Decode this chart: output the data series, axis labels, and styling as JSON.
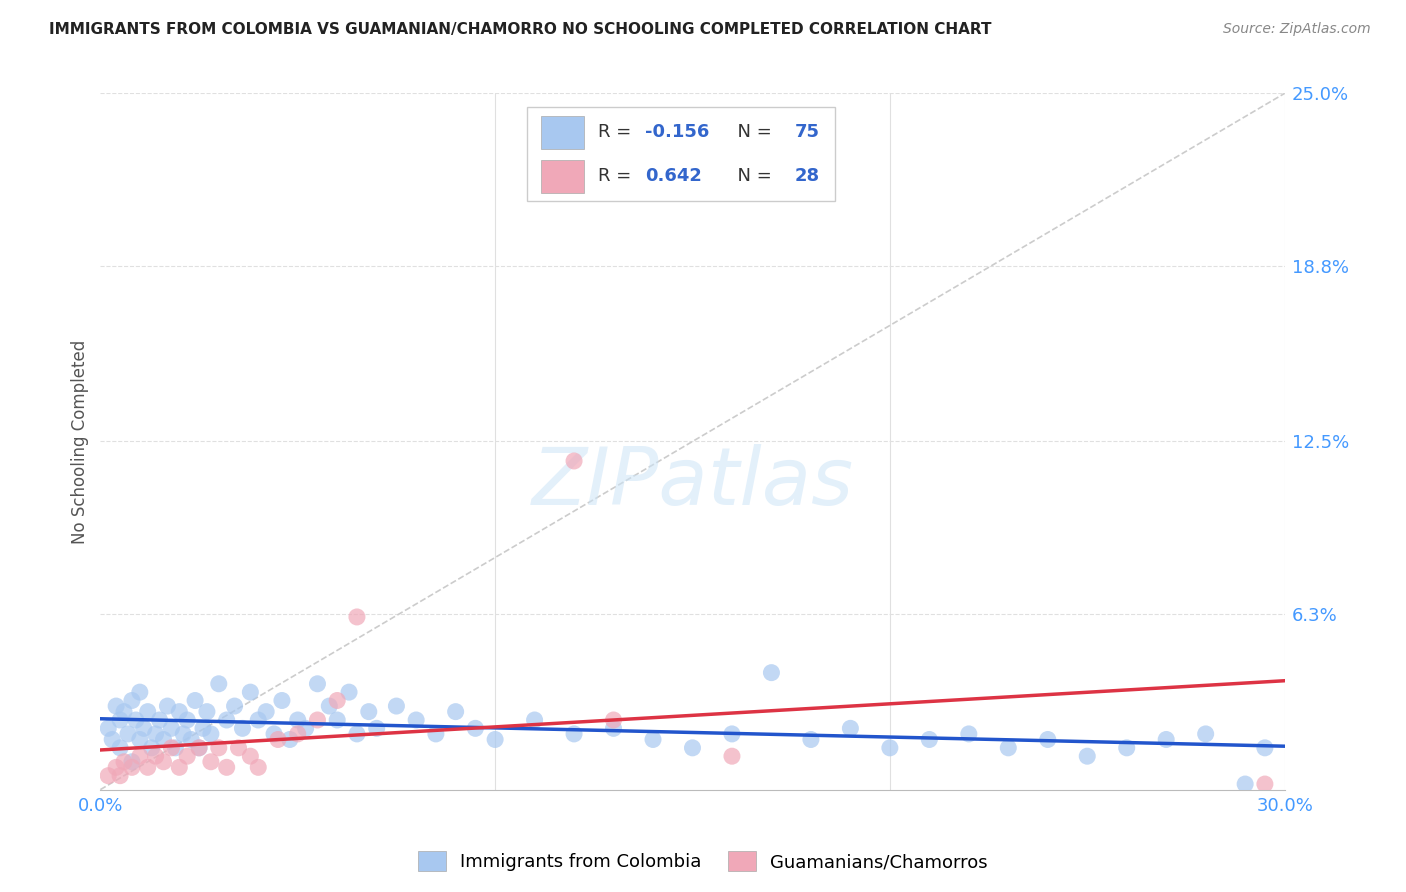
{
  "title": "IMMIGRANTS FROM COLOMBIA VS GUAMANIAN/CHAMORRO NO SCHOOLING COMPLETED CORRELATION CHART",
  "source": "Source: ZipAtlas.com",
  "ylabel": "No Schooling Completed",
  "xlim": [
    0.0,
    0.3
  ],
  "ylim": [
    0.0,
    0.25
  ],
  "yticks": [
    0.0,
    0.063,
    0.125,
    0.188,
    0.25
  ],
  "ytick_labels": [
    "",
    "6.3%",
    "12.5%",
    "18.8%",
    "25.0%"
  ],
  "xtick_labels": [
    "0.0%",
    "30.0%"
  ],
  "background_color": "#ffffff",
  "grid_color": "#e0e0e0",
  "diagonal_color": "#cccccc",
  "colombia_color": "#a8c8f0",
  "guam_color": "#f0a8b8",
  "trendline_colombia_color": "#2255cc",
  "trendline_guam_color": "#dd3344",
  "legend_R_colombia": "-0.156",
  "legend_N_colombia": "75",
  "legend_R_guam": "0.642",
  "legend_N_guam": "28",
  "colombia_scatter_x": [
    0.002,
    0.003,
    0.004,
    0.005,
    0.005,
    0.006,
    0.007,
    0.008,
    0.008,
    0.009,
    0.01,
    0.01,
    0.011,
    0.012,
    0.013,
    0.014,
    0.015,
    0.016,
    0.017,
    0.018,
    0.019,
    0.02,
    0.021,
    0.022,
    0.023,
    0.024,
    0.025,
    0.026,
    0.027,
    0.028,
    0.03,
    0.032,
    0.034,
    0.036,
    0.038,
    0.04,
    0.042,
    0.044,
    0.046,
    0.048,
    0.05,
    0.052,
    0.055,
    0.058,
    0.06,
    0.063,
    0.065,
    0.068,
    0.07,
    0.075,
    0.08,
    0.085,
    0.09,
    0.095,
    0.1,
    0.11,
    0.12,
    0.13,
    0.14,
    0.15,
    0.16,
    0.17,
    0.18,
    0.19,
    0.2,
    0.21,
    0.22,
    0.23,
    0.24,
    0.25,
    0.26,
    0.27,
    0.28,
    0.29,
    0.295
  ],
  "colombia_scatter_y": [
    0.022,
    0.018,
    0.03,
    0.025,
    0.015,
    0.028,
    0.02,
    0.032,
    0.01,
    0.025,
    0.018,
    0.035,
    0.022,
    0.028,
    0.015,
    0.02,
    0.025,
    0.018,
    0.03,
    0.022,
    0.015,
    0.028,
    0.02,
    0.025,
    0.018,
    0.032,
    0.015,
    0.022,
    0.028,
    0.02,
    0.038,
    0.025,
    0.03,
    0.022,
    0.035,
    0.025,
    0.028,
    0.02,
    0.032,
    0.018,
    0.025,
    0.022,
    0.038,
    0.03,
    0.025,
    0.035,
    0.02,
    0.028,
    0.022,
    0.03,
    0.025,
    0.02,
    0.028,
    0.022,
    0.018,
    0.025,
    0.02,
    0.022,
    0.018,
    0.015,
    0.02,
    0.042,
    0.018,
    0.022,
    0.015,
    0.018,
    0.02,
    0.015,
    0.018,
    0.012,
    0.015,
    0.018,
    0.02,
    0.002,
    0.015
  ],
  "guam_scatter_x": [
    0.002,
    0.004,
    0.005,
    0.006,
    0.008,
    0.01,
    0.012,
    0.014,
    0.016,
    0.018,
    0.02,
    0.022,
    0.025,
    0.028,
    0.03,
    0.032,
    0.035,
    0.038,
    0.04,
    0.045,
    0.05,
    0.055,
    0.06,
    0.065,
    0.12,
    0.13,
    0.16,
    0.295
  ],
  "guam_scatter_y": [
    0.005,
    0.008,
    0.005,
    0.01,
    0.008,
    0.012,
    0.008,
    0.012,
    0.01,
    0.015,
    0.008,
    0.012,
    0.015,
    0.01,
    0.015,
    0.008,
    0.015,
    0.012,
    0.008,
    0.018,
    0.02,
    0.025,
    0.032,
    0.062,
    0.118,
    0.025,
    0.012,
    0.002
  ]
}
